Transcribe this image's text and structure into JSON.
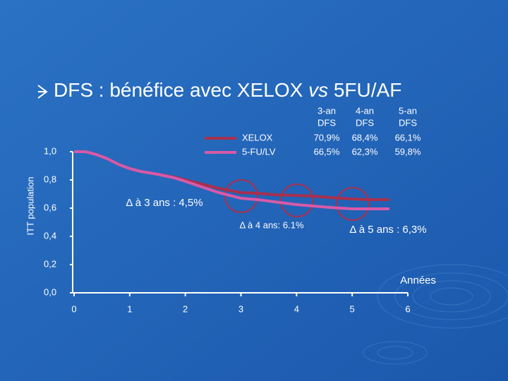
{
  "chart_data": {
    "type": "line",
    "title_parts": [
      "DFS : bénéfice avec XELOX ",
      "vs",
      " 5FU/AF"
    ],
    "y_label": "ITT population",
    "x_label": "Années",
    "x": [
      0,
      0.2,
      0.4,
      0.6,
      0.8,
      1.0,
      1.2,
      1.5,
      1.8,
      2.0,
      2.3,
      2.6,
      3.0,
      3.3,
      3.6,
      4.0,
      4.3,
      4.6,
      5.0,
      5.3,
      5.67
    ],
    "series": [
      {
        "name": "XELOX",
        "color": "#a8304e",
        "values": [
          1.0,
          1.0,
          0.98,
          0.95,
          0.91,
          0.88,
          0.86,
          0.84,
          0.82,
          0.8,
          0.77,
          0.74,
          0.71,
          0.705,
          0.695,
          0.69,
          0.685,
          0.675,
          0.665,
          0.66,
          0.66
        ]
      },
      {
        "name": "5-FU/LV",
        "color": "#d75aa8",
        "values": [
          1.0,
          1.0,
          0.98,
          0.95,
          0.91,
          0.88,
          0.86,
          0.84,
          0.815,
          0.79,
          0.75,
          0.71,
          0.67,
          0.66,
          0.645,
          0.625,
          0.615,
          0.605,
          0.595,
          0.595,
          0.595
        ]
      }
    ],
    "xlim": [
      0,
      6
    ],
    "xticks": [
      0,
      1,
      2,
      3,
      4,
      5,
      6
    ],
    "ylim": [
      0,
      1
    ],
    "yticks": [
      {
        "value": 0,
        "label": "0,0"
      },
      {
        "value": 0.2,
        "label": "0,2"
      },
      {
        "value": 0.4,
        "label": "0,4"
      },
      {
        "value": 0.6,
        "label": "0,6"
      },
      {
        "value": 0.8,
        "label": "0,8"
      },
      {
        "value": 1,
        "label": "1,0"
      }
    ],
    "annotations": [
      "Δ à 3 ans : 4,5%",
      "Δ à 4 ans: 6.1%",
      "Δ à 5 ans : 6,3%"
    ]
  },
  "table": {
    "header": [
      [
        "3-an",
        "DFS"
      ],
      [
        "4-an",
        "DFS"
      ],
      [
        "5-an",
        "DFS"
      ]
    ],
    "rows": [
      [
        "70,9%",
        "68,4%",
        "66,1%"
      ],
      [
        "66,5%",
        "62,3%",
        "59,8%"
      ]
    ]
  }
}
